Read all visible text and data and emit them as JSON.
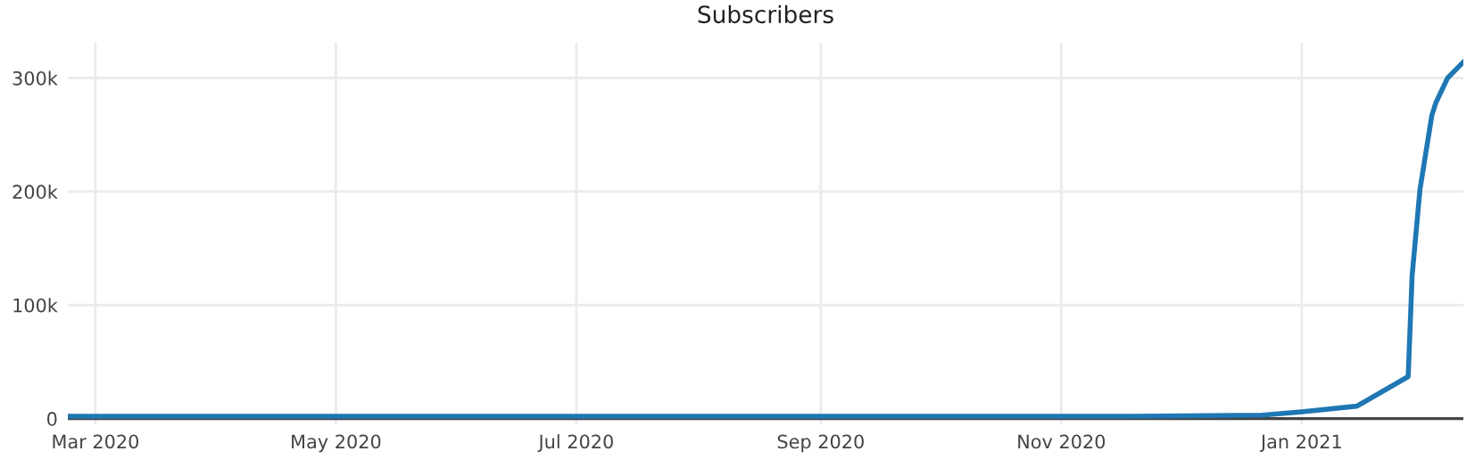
{
  "chart_data": {
    "type": "line",
    "title": "Subscribers",
    "x": [
      "2020-02-23",
      "2020-04-15",
      "2020-07-01",
      "2020-09-15",
      "2020-11-15",
      "2020-12-22",
      "2021-01-01",
      "2021-01-15",
      "2021-01-28",
      "2021-01-29",
      "2021-01-31",
      "2021-02-03",
      "2021-02-04",
      "2021-02-07",
      "2021-02-11"
    ],
    "series": [
      {
        "color": "#1f77b4",
        "values": [
          2000,
          2000,
          2000,
          2000,
          2000,
          3000,
          6000,
          11000,
          37000,
          126000,
          202000,
          267000,
          278000,
          300000,
          314000
        ]
      }
    ],
    "xlim": [
      "2020-02-23",
      "2021-02-11"
    ],
    "xticks": [
      {
        "value": "2020-03-01",
        "label": "Mar 2020"
      },
      {
        "value": "2020-05-01",
        "label": "May 2020"
      },
      {
        "value": "2020-07-01",
        "label": "Jul 2020"
      },
      {
        "value": "2020-09-01",
        "label": "Sep 2020"
      },
      {
        "value": "2020-11-01",
        "label": "Nov 2020"
      },
      {
        "value": "2021-01-01",
        "label": "Jan 2021"
      }
    ],
    "ylim": [
      -5000,
      331000
    ],
    "yticks": [
      {
        "value": 0,
        "label": "0"
      },
      {
        "value": 100000,
        "label": "100k"
      },
      {
        "value": 200000,
        "label": "200k"
      },
      {
        "value": 300000,
        "label": "300k"
      }
    ],
    "grid": true,
    "marker": "none",
    "line_style": "solid"
  }
}
